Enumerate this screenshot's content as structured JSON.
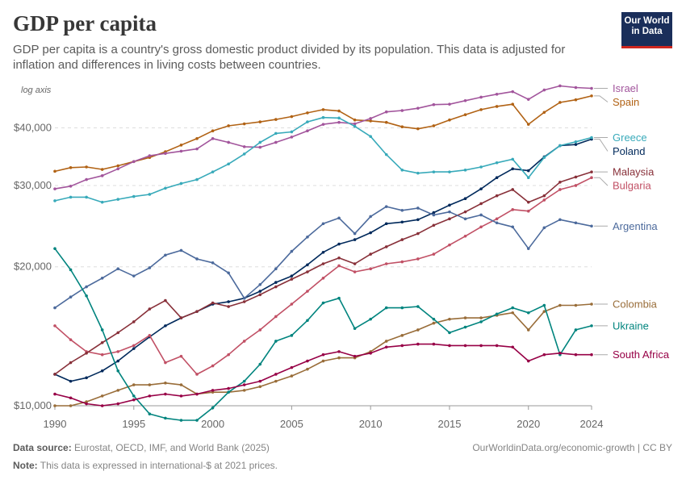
{
  "header": {
    "title": "GDP per capita",
    "subtitle": "GDP per capita is a country's gross domestic product divided by its population. This data is adjusted for inflation and differences in living costs between countries.",
    "logo_line1": "Our World",
    "logo_line2": "in Data"
  },
  "footer": {
    "source_label": "Data source:",
    "source_text": "Eurostat, OECD, IMF, and World Bank (2025)",
    "credit": "OurWorldinData.org/economic-growth | CC BY",
    "note_label": "Note:",
    "note_text": "This data is expressed in international-$ at 2021 prices."
  },
  "chart_data": {
    "type": "line",
    "scale_label": "log axis",
    "y_scale": "log",
    "ylim": [
      10000,
      49000
    ],
    "xlim": [
      1990,
      2024
    ],
    "x_ticks": [
      1990,
      1995,
      2000,
      2005,
      2010,
      2015,
      2020,
      2024
    ],
    "y_ticks": [
      {
        "value": 10000,
        "label": "$10,000"
      },
      {
        "value": 20000,
        "label": "$20,000"
      },
      {
        "value": 30000,
        "label": "$30,000"
      },
      {
        "value": 40000,
        "label": "$40,000"
      }
    ],
    "grid": "horizontal dashed",
    "legend_placement": "right, labels at line ends",
    "years": [
      1990,
      1991,
      1992,
      1993,
      1994,
      1995,
      1996,
      1997,
      1998,
      1999,
      2000,
      2001,
      2002,
      2003,
      2004,
      2005,
      2006,
      2007,
      2008,
      2009,
      2010,
      2011,
      2012,
      2013,
      2014,
      2015,
      2016,
      2017,
      2018,
      2019,
      2020,
      2021,
      2022,
      2023,
      2024
    ],
    "series": [
      {
        "name": "Spain",
        "color": "#b16214",
        "values": [
          32200,
          32800,
          32900,
          32500,
          33100,
          33800,
          34500,
          35500,
          36700,
          37900,
          39400,
          40400,
          40800,
          41200,
          41700,
          42300,
          43100,
          43800,
          43500,
          41600,
          41400,
          41100,
          40200,
          39800,
          40400,
          41600,
          42700,
          43800,
          44500,
          45000,
          40700,
          43200,
          45400,
          46000,
          46900
        ]
      },
      {
        "name": "Israel",
        "color": "#a2559c",
        "values": [
          29500,
          29900,
          30900,
          31500,
          32600,
          33800,
          34800,
          35200,
          35600,
          36000,
          37900,
          37200,
          36400,
          36300,
          37200,
          38200,
          39400,
          40700,
          41100,
          40800,
          41900,
          43300,
          43600,
          44100,
          44900,
          45000,
          45800,
          46600,
          47300,
          47900,
          46100,
          48300,
          49300,
          48900,
          48700
        ]
      },
      {
        "name": "Poland",
        "color": "#00295b",
        "values": [
          11700,
          11300,
          11500,
          11900,
          12500,
          13300,
          14100,
          14900,
          15500,
          16000,
          16600,
          16800,
          17100,
          17700,
          18500,
          19100,
          20200,
          21500,
          22400,
          22900,
          23700,
          24800,
          25000,
          25300,
          26200,
          27200,
          28100,
          29500,
          31200,
          32600,
          32300,
          34600,
          36600,
          36800,
          37800
        ]
      },
      {
        "name": "Greece",
        "color": "#38aaba",
        "values": [
          27800,
          28300,
          28300,
          27600,
          28000,
          28400,
          28700,
          29600,
          30300,
          30900,
          32100,
          33400,
          35100,
          37200,
          38900,
          39200,
          41200,
          42100,
          42000,
          40300,
          38300,
          35000,
          32400,
          31900,
          32100,
          32100,
          32400,
          32900,
          33600,
          34200,
          31200,
          34500,
          36600,
          37300,
          38100
        ]
      },
      {
        "name": "Bulgaria",
        "color": "#c15065",
        "values": [
          14900,
          13900,
          13100,
          12900,
          13100,
          13500,
          14200,
          12400,
          12800,
          11700,
          12200,
          12900,
          13800,
          14600,
          15600,
          16600,
          17700,
          18900,
          20100,
          19500,
          19800,
          20300,
          20500,
          20800,
          21300,
          22300,
          23300,
          24400,
          25400,
          26600,
          26400,
          27900,
          29400,
          30000,
          31200
        ]
      },
      {
        "name": "Malaysia",
        "color": "#883039",
        "values": [
          11700,
          12400,
          13000,
          13700,
          14400,
          15200,
          16200,
          16900,
          15500,
          16000,
          16700,
          16400,
          16800,
          17400,
          18100,
          18800,
          19500,
          20300,
          20900,
          20300,
          21300,
          22100,
          22900,
          23600,
          24600,
          25400,
          26300,
          27400,
          28500,
          29400,
          27600,
          28500,
          30500,
          31300,
          32100
        ]
      },
      {
        "name": "Argentina",
        "color": "#4c6a9c",
        "values": [
          16300,
          17200,
          18100,
          18900,
          19800,
          19100,
          19900,
          21200,
          21700,
          20800,
          20400,
          19400,
          17100,
          18300,
          19800,
          21600,
          23200,
          24800,
          25500,
          23600,
          25700,
          27000,
          26500,
          26800,
          25900,
          26300,
          25400,
          25900,
          24900,
          24400,
          21900,
          24300,
          25300,
          24900,
          24500
        ]
      },
      {
        "name": "Colombia",
        "color": "#996d39",
        "values": [
          10000,
          10000,
          10200,
          10500,
          10800,
          11100,
          11100,
          11200,
          11100,
          10600,
          10700,
          10700,
          10800,
          11000,
          11300,
          11600,
          12000,
          12500,
          12700,
          12700,
          13100,
          13800,
          14200,
          14600,
          15100,
          15400,
          15500,
          15500,
          15700,
          15900,
          14600,
          16000,
          16500,
          16500,
          16600
        ]
      },
      {
        "name": "Ukraine",
        "color": "#00847e",
        "values": [
          21900,
          19700,
          17300,
          14600,
          11900,
          10500,
          9600,
          9400,
          9300,
          9300,
          9900,
          10700,
          11300,
          12300,
          13800,
          14200,
          15300,
          16700,
          17100,
          14700,
          15400,
          16300,
          16300,
          16400,
          15400,
          14400,
          14800,
          15200,
          15800,
          16300,
          15900,
          16500,
          12900,
          14600,
          14900
        ]
      },
      {
        "name": "South Africa",
        "color": "#970046",
        "values": [
          10600,
          10400,
          10100,
          10000,
          10100,
          10300,
          10500,
          10600,
          10500,
          10600,
          10800,
          10900,
          11100,
          11300,
          11700,
          12100,
          12500,
          12900,
          13100,
          12800,
          13000,
          13400,
          13500,
          13600,
          13600,
          13500,
          13500,
          13500,
          13500,
          13400,
          12500,
          12900,
          13000,
          12900,
          12900
        ]
      }
    ]
  }
}
